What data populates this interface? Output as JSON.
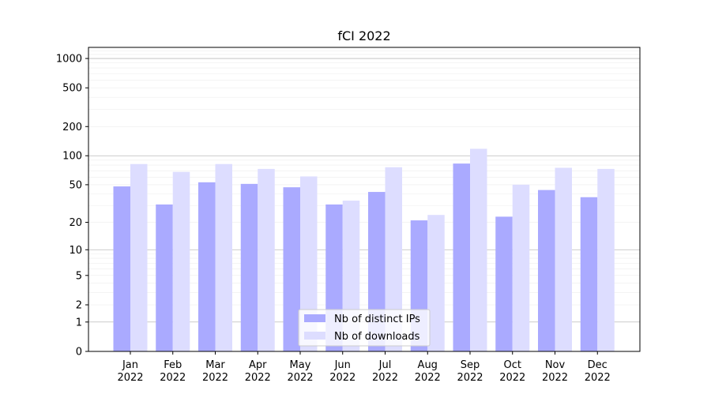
{
  "chart_data": {
    "type": "bar",
    "title": "fCI 2022",
    "xlabel": "",
    "ylabel": "",
    "yscale": "symlog",
    "ylim": [
      0,
      1300
    ],
    "yticks": [
      0,
      1,
      2,
      5,
      10,
      20,
      50,
      100,
      200,
      500,
      1000
    ],
    "ytick_labels": [
      "0",
      "1",
      "2",
      "5",
      "10",
      "20",
      "50",
      "100",
      "200",
      "500",
      "1000"
    ],
    "categories": [
      [
        "Jan",
        "2022"
      ],
      [
        "Feb",
        "2022"
      ],
      [
        "Mar",
        "2022"
      ],
      [
        "Apr",
        "2022"
      ],
      [
        "May",
        "2022"
      ],
      [
        "Jun",
        "2022"
      ],
      [
        "Jul",
        "2022"
      ],
      [
        "Aug",
        "2022"
      ],
      [
        "Sep",
        "2022"
      ],
      [
        "Oct",
        "2022"
      ],
      [
        "Nov",
        "2022"
      ],
      [
        "Dec",
        "2022"
      ]
    ],
    "series": [
      {
        "name": "Nb of distinct IPs",
        "color": "#aaaaff",
        "values": [
          48,
          31,
          53,
          51,
          47,
          31,
          42,
          21,
          83,
          23,
          44,
          37
        ]
      },
      {
        "name": "Nb of downloads",
        "color": "#ddddff",
        "values": [
          82,
          68,
          82,
          73,
          61,
          34,
          76,
          24,
          118,
          50,
          75,
          73
        ]
      }
    ],
    "grid": true,
    "legend_position": "lower-center"
  }
}
